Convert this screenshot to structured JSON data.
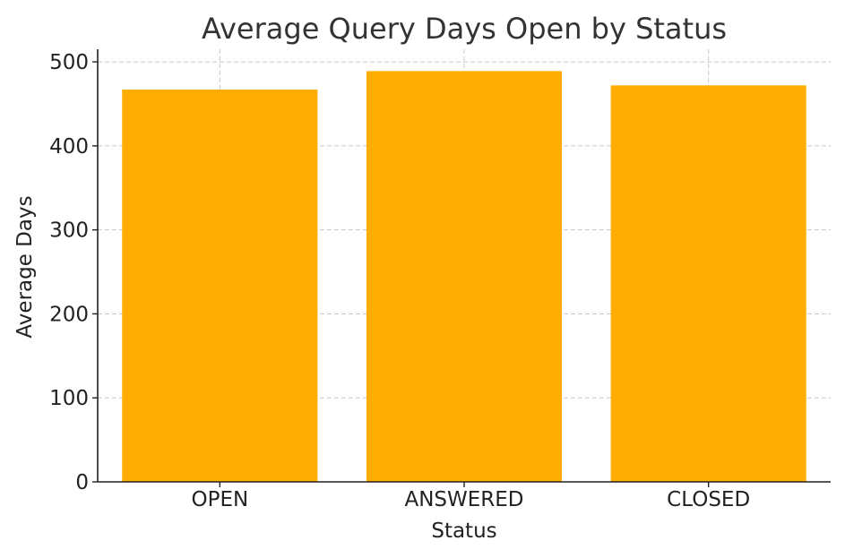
{
  "chart_data": {
    "type": "bar",
    "title": "Average Query Days Open by Status",
    "xlabel": "Status",
    "ylabel": "Average Days",
    "categories": [
      "OPEN",
      "ANSWERED",
      "CLOSED"
    ],
    "values": [
      467,
      489,
      472
    ],
    "ylim": [
      0,
      515
    ],
    "yticks": [
      0,
      100,
      200,
      300,
      400,
      500
    ],
    "grid": true,
    "bar_color": "#FFAD00"
  }
}
